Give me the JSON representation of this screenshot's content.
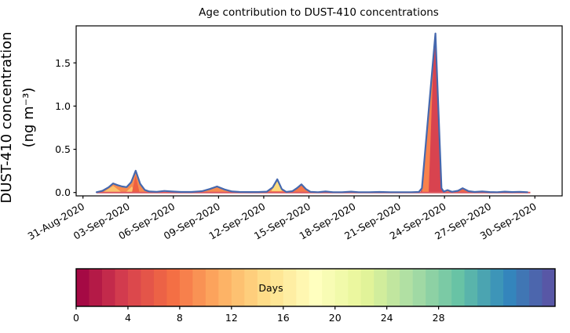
{
  "chart_data": {
    "type": "area",
    "title": "Age contribution to DUST-410 concentrations",
    "ylabel": "DUST-410 concentration",
    "ylabel_units": "(ng m⁻³)",
    "xlabel": "",
    "grid": false,
    "legend": "none",
    "ylim": [
      -0.04,
      1.93
    ],
    "xlim_days": [
      -0.45,
      31.8
    ],
    "y_ticks": [
      {
        "label": "0.0",
        "value": 0.0
      },
      {
        "label": "0.5",
        "value": 0.5
      },
      {
        "label": "1.0",
        "value": 1.0
      },
      {
        "label": "1.5",
        "value": 1.5
      }
    ],
    "x_ticks": [
      {
        "label": "31-Aug-2020",
        "day": 0
      },
      {
        "label": "03-Sep-2020",
        "day": 3
      },
      {
        "label": "06-Sep-2020",
        "day": 6
      },
      {
        "label": "09-Sep-2020",
        "day": 9
      },
      {
        "label": "12-Sep-2020",
        "day": 12
      },
      {
        "label": "15-Sep-2020",
        "day": 15
      },
      {
        "label": "18-Sep-2020",
        "day": 18
      },
      {
        "label": "21-Sep-2020",
        "day": 21
      },
      {
        "label": "24-Sep-2020",
        "day": 24
      },
      {
        "label": "27-Sep-2020",
        "day": 27
      },
      {
        "label": "30-Sep-2020",
        "day": 30
      }
    ],
    "series": {
      "name": "DUST-410 concentration",
      "line_color": "#4568ae",
      "line_width": 2.2,
      "points": [
        [
          0.9,
          0.004
        ],
        [
          1.3,
          0.02
        ],
        [
          1.7,
          0.06
        ],
        [
          2.0,
          0.105
        ],
        [
          2.3,
          0.085
        ],
        [
          2.6,
          0.07
        ],
        [
          2.9,
          0.063
        ],
        [
          3.2,
          0.12
        ],
        [
          3.5,
          0.252
        ],
        [
          3.8,
          0.1
        ],
        [
          4.1,
          0.03
        ],
        [
          4.4,
          0.012
        ],
        [
          4.9,
          0.008
        ],
        [
          5.4,
          0.018
        ],
        [
          5.9,
          0.012
        ],
        [
          6.5,
          0.006
        ],
        [
          7.2,
          0.006
        ],
        [
          7.9,
          0.015
        ],
        [
          8.4,
          0.04
        ],
        [
          8.9,
          0.07
        ],
        [
          9.4,
          0.035
        ],
        [
          9.9,
          0.012
        ],
        [
          10.4,
          0.006
        ],
        [
          11.0,
          0.005
        ],
        [
          11.6,
          0.005
        ],
        [
          12.2,
          0.01
        ],
        [
          12.6,
          0.06
        ],
        [
          12.9,
          0.153
        ],
        [
          13.2,
          0.04
        ],
        [
          13.5,
          0.006
        ],
        [
          13.9,
          0.015
        ],
        [
          14.2,
          0.05
        ],
        [
          14.5,
          0.094
        ],
        [
          14.8,
          0.04
        ],
        [
          15.1,
          0.008
        ],
        [
          15.6,
          0.004
        ],
        [
          16.1,
          0.012
        ],
        [
          16.6,
          0.004
        ],
        [
          17.2,
          0.004
        ],
        [
          17.8,
          0.01
        ],
        [
          18.3,
          0.004
        ],
        [
          19.0,
          0.004
        ],
        [
          19.7,
          0.006
        ],
        [
          20.4,
          0.004
        ],
        [
          21.1,
          0.004
        ],
        [
          21.8,
          0.004
        ],
        [
          22.3,
          0.006
        ],
        [
          22.5,
          0.05
        ],
        [
          23.4,
          1.84
        ],
        [
          23.8,
          0.05
        ],
        [
          23.95,
          0.01
        ],
        [
          24.2,
          0.028
        ],
        [
          24.5,
          0.008
        ],
        [
          24.9,
          0.02
        ],
        [
          25.2,
          0.05
        ],
        [
          25.6,
          0.015
        ],
        [
          26.0,
          0.006
        ],
        [
          26.5,
          0.012
        ],
        [
          27.0,
          0.005
        ],
        [
          27.5,
          0.004
        ],
        [
          28.0,
          0.01
        ],
        [
          28.5,
          0.005
        ],
        [
          29.0,
          0.008
        ],
        [
          29.5,
          0.004
        ]
      ]
    },
    "baseline": {
      "color": "#dc5a60",
      "from_day": 0.9,
      "to_day": 29.7,
      "width": 2
    },
    "fills_under_curve": [
      {
        "from": 0.9,
        "to": 5.0,
        "color": "#f68b50"
      },
      {
        "from": 7.8,
        "to": 10.5,
        "color": "#f68b50"
      },
      {
        "from": 12.15,
        "to": 13.6,
        "color": "#f6854e"
      },
      {
        "from": 13.8,
        "to": 15.3,
        "color": "#f5784a"
      },
      {
        "from": 22.4,
        "to": 24.0,
        "color": "#d8434f"
      },
      {
        "from": 24.05,
        "to": 24.7,
        "color": "#f68b50"
      },
      {
        "from": 24.75,
        "to": 26.2,
        "color": "#ec6647"
      }
    ],
    "inner_fills": [
      {
        "color": "#fcc36e",
        "points": [
          [
            1.35,
            0.004
          ],
          [
            2.0,
            0.078
          ],
          [
            2.55,
            0.004
          ]
        ]
      },
      {
        "color": "#fcc36e",
        "points": [
          [
            2.85,
            0.004
          ],
          [
            3.25,
            0.07
          ],
          [
            3.45,
            0.004
          ]
        ]
      },
      {
        "color": "#ee5f41",
        "points": [
          [
            3.25,
            0.004
          ],
          [
            3.5,
            0.2
          ],
          [
            3.75,
            0.004
          ]
        ]
      },
      {
        "color": "#fcdb7c",
        "points": [
          [
            12.5,
            0.016
          ],
          [
            12.9,
            0.132
          ],
          [
            13.22,
            0.016
          ]
        ]
      },
      {
        "color": "#f8814c",
        "points": [
          [
            22.5,
            0.004
          ],
          [
            23.3,
            1.7
          ],
          [
            22.95,
            0.004
          ]
        ]
      }
    ],
    "colorbar": {
      "label": "Days",
      "label_at_value": 15,
      "vmin": 0,
      "vmax": 37,
      "n_segments": 37,
      "ticks": [
        0,
        4,
        8,
        12,
        16,
        20,
        24,
        28
      ],
      "colormap": "Spectral",
      "stops": [
        [
          0.0,
          "#9e0142"
        ],
        [
          0.1,
          "#d53e4f"
        ],
        [
          0.2,
          "#f46d43"
        ],
        [
          0.3,
          "#fdae61"
        ],
        [
          0.4,
          "#fee08b"
        ],
        [
          0.5,
          "#ffffbf"
        ],
        [
          0.6,
          "#e6f598"
        ],
        [
          0.7,
          "#abdda4"
        ],
        [
          0.8,
          "#66c2a5"
        ],
        [
          0.9,
          "#3288bd"
        ],
        [
          1.0,
          "#5e4fa2"
        ]
      ],
      "border_color": "#000000"
    },
    "frame_color": "#000000",
    "background_color": "#ffffff"
  }
}
